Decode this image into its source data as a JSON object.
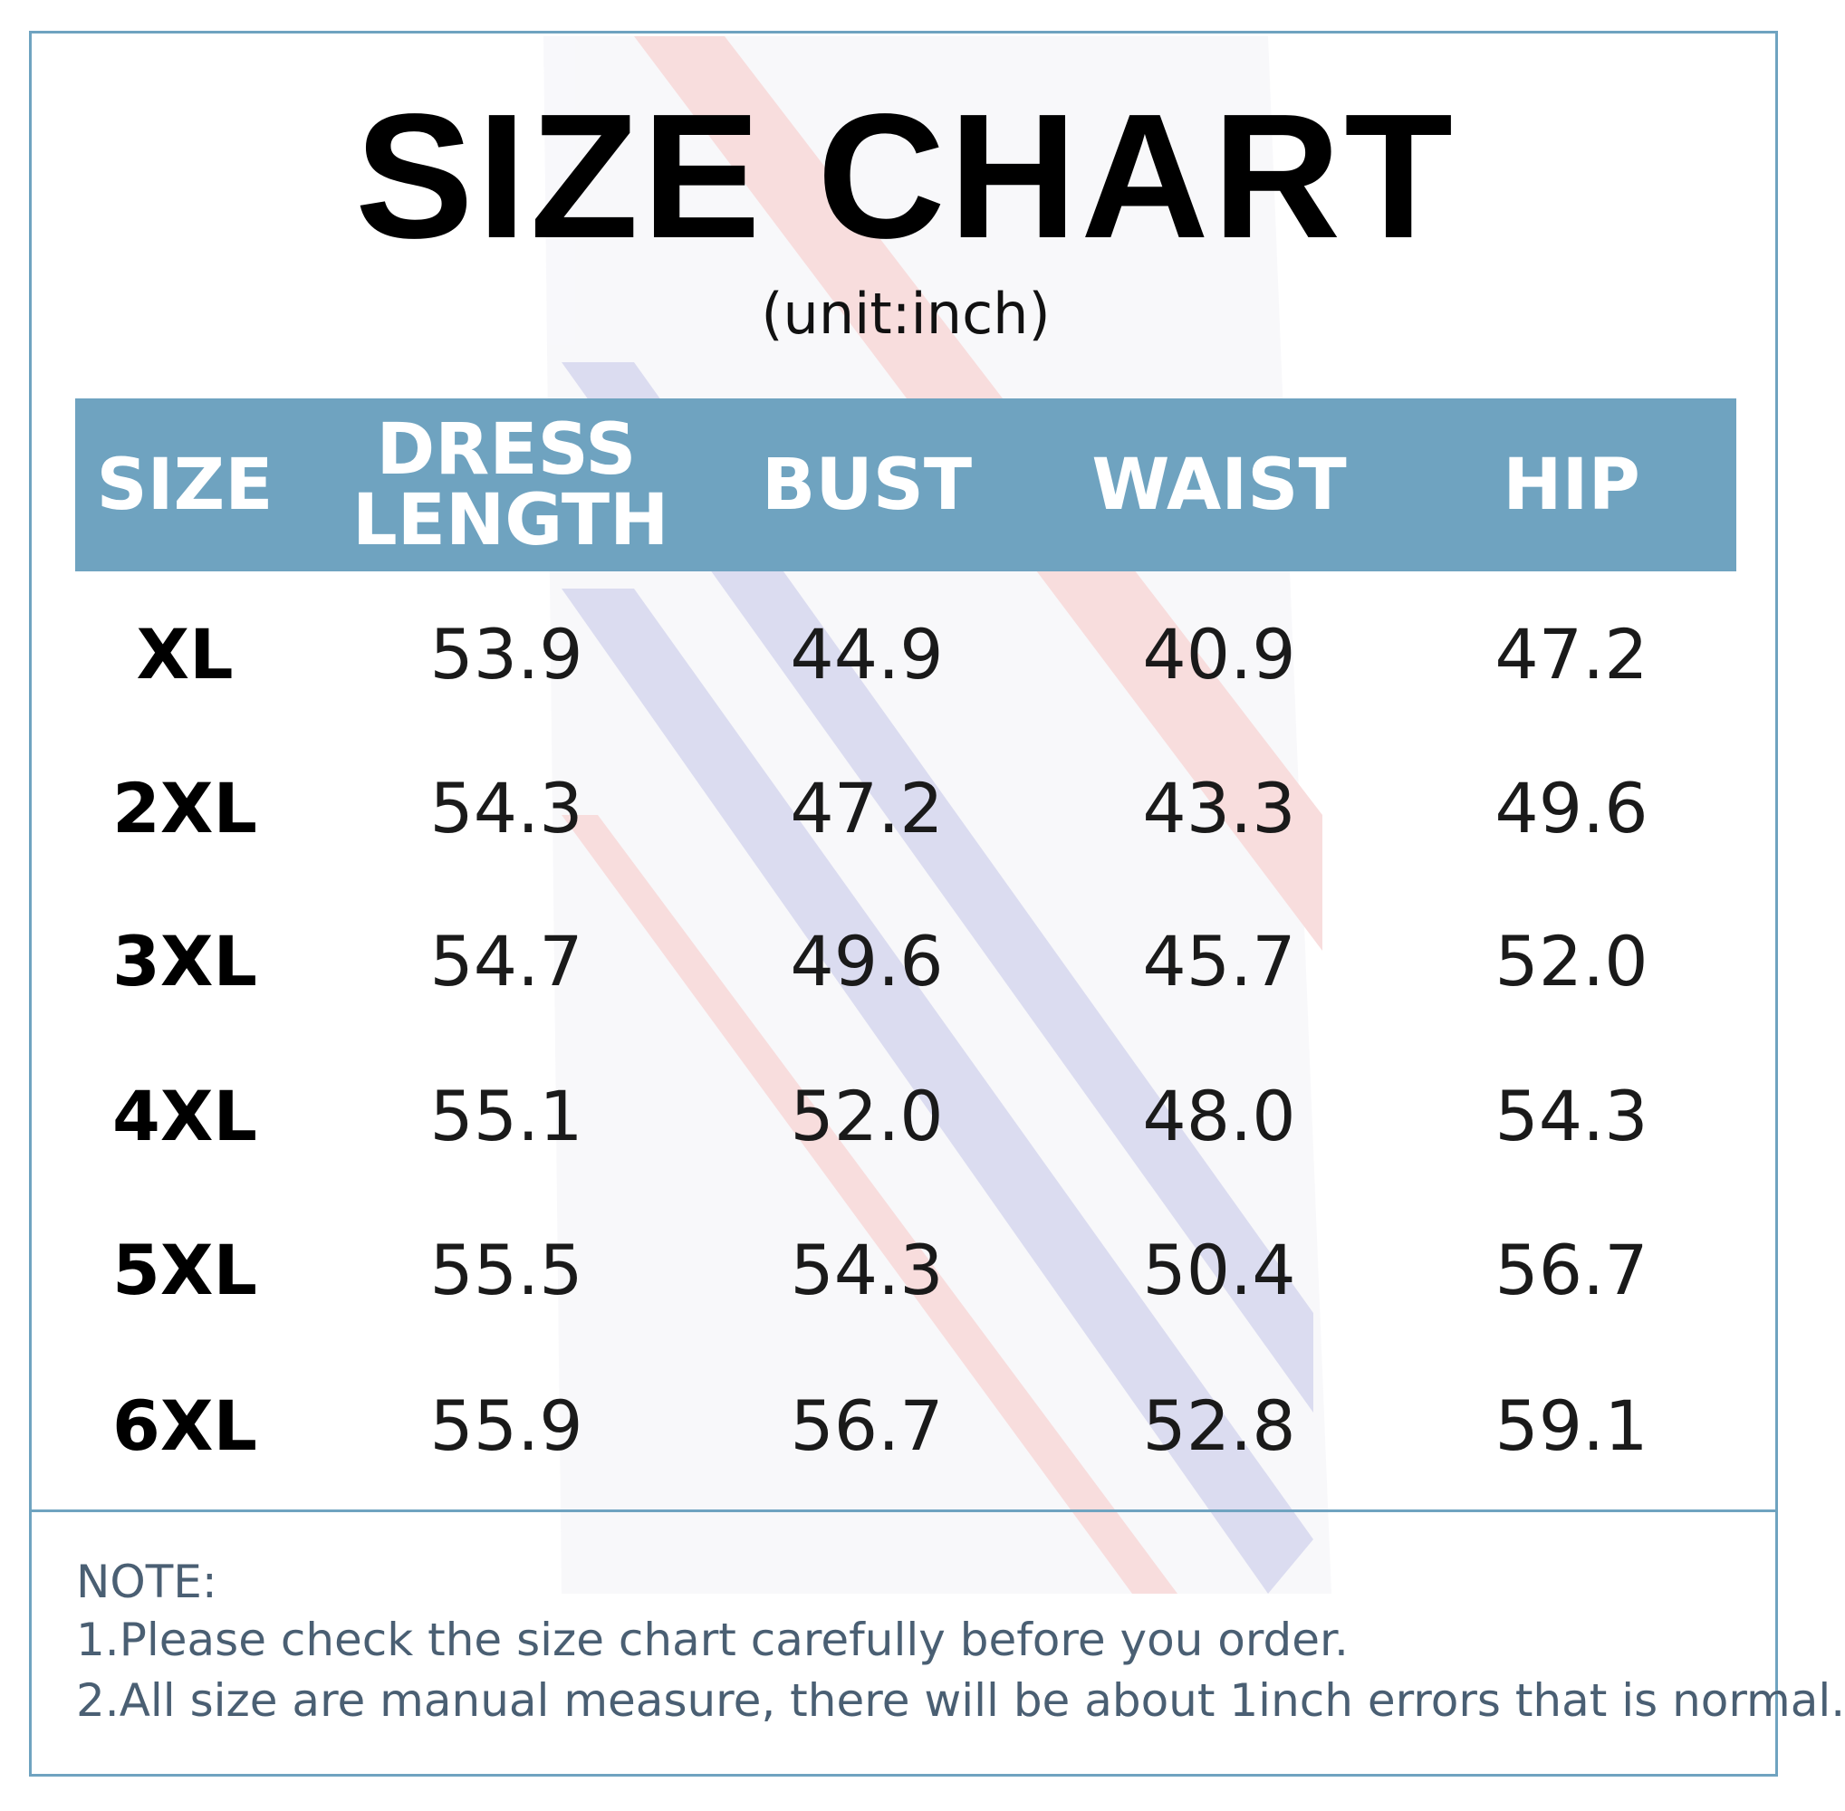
{
  "header": {
    "title": "SIZE CHART",
    "unit": "(unit:inch)"
  },
  "table": {
    "columns": [
      "SIZE",
      "DRESS LENGTH",
      "BUST",
      "WAIST",
      "HIP"
    ],
    "rows": [
      [
        "XL",
        "53.9",
        "44.9",
        "40.9",
        "47.2"
      ],
      [
        "2XL",
        "54.3",
        "47.2",
        "43.3",
        "49.6"
      ],
      [
        "3XL",
        "54.7",
        "49.6",
        "45.7",
        "52.0"
      ],
      [
        "4XL",
        "55.1",
        "52.0",
        "48.0",
        "54.3"
      ],
      [
        "5XL",
        "55.5",
        "54.3",
        "50.4",
        "56.7"
      ],
      [
        "6XL",
        "55.9",
        "56.7",
        "52.8",
        "59.1"
      ]
    ]
  },
  "notes": [
    "NOTE:",
    "1.Please check the size chart carefully before you order.",
    "2.All size are manual measure, there will be about 1inch errors that is normal."
  ]
}
